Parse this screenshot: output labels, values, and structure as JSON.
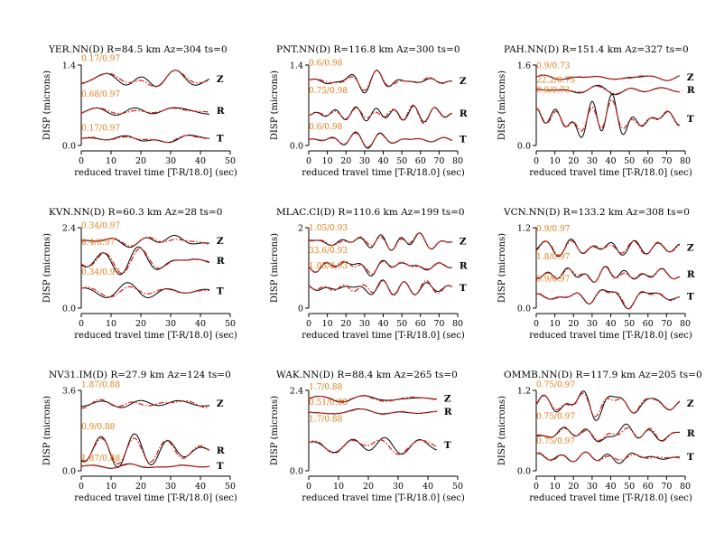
{
  "figure": {
    "xlabel": "reduced travel time [T-R/18.0] (sec)",
    "ylabel": "DISP (microns)",
    "colors": {
      "observed": "#000000",
      "synthetic": "#e0271c",
      "annotation": "#e07b14"
    }
  },
  "chart_data": [
    {
      "type": "line",
      "title": "YER.NN(D) R=84.5 km Az=304 ts=0",
      "xlim": [
        0,
        50
      ],
      "xticks": [
        0,
        10,
        20,
        30,
        40,
        50
      ],
      "ylim": [
        0,
        1.4
      ],
      "yticks": [
        "0.0",
        "1.4"
      ],
      "tmax": 43,
      "traces": [
        {
          "component": "Z",
          "annotation": "0.17/0.97",
          "offset": 1.15,
          "amp": 0.26,
          "obs_seed": 11,
          "syn_seed": 12
        },
        {
          "component": "R",
          "annotation": "0.68/0.97",
          "offset": 0.6,
          "amp": 0.2,
          "obs_seed": 13,
          "syn_seed": 14
        },
        {
          "component": "T",
          "annotation": "0.17/0.97",
          "offset": 0.12,
          "amp": 0.1,
          "obs_seed": 15,
          "syn_seed": 16
        }
      ]
    },
    {
      "type": "line",
      "title": "PNT.NN(D) R=116.8 km Az=300 ts=0",
      "xlim": [
        0,
        80
      ],
      "xticks": [
        0,
        10,
        20,
        30,
        40,
        50,
        60,
        70,
        80
      ],
      "ylim": [
        0,
        1.4
      ],
      "yticks": [
        "0.0",
        "1.4"
      ],
      "tmax": 77,
      "traces": [
        {
          "component": "Z",
          "annotation": "0.6/0.98",
          "offset": 1.12,
          "amp": 0.22,
          "obs_seed": 21,
          "syn_seed": 22
        },
        {
          "component": "R",
          "annotation": "0.75/0.98",
          "offset": 0.55,
          "amp": 0.3,
          "obs_seed": 23,
          "syn_seed": 24
        },
        {
          "component": "T",
          "annotation": "0.6/0.98",
          "offset": 0.1,
          "amp": 0.14,
          "obs_seed": 25,
          "syn_seed": 26
        }
      ]
    },
    {
      "type": "line",
      "title": "PAH.NN(D) R=151.4 km Az=327 ts=0",
      "xlim": [
        0,
        80
      ],
      "xticks": [
        0,
        10,
        20,
        30,
        40,
        50,
        60,
        70,
        80
      ],
      "ylim": [
        0,
        1.6
      ],
      "yticks": [
        "0.0",
        "1.6"
      ],
      "tmax": 77,
      "traces": [
        {
          "component": "Z",
          "annotation": "0.9/0.73",
          "offset": 1.35,
          "amp": 0.14,
          "obs_seed": 31,
          "syn_seed": 32
        },
        {
          "component": "R",
          "annotation": "22.2/0.73",
          "offset": 1.1,
          "amp": 0.1,
          "obs_seed": 33,
          "syn_seed": 34
        },
        {
          "component": "T",
          "annotation": "0.9/0.73",
          "offset": 0.52,
          "amp": 0.45,
          "obs_seed": 35,
          "syn_seed": 36
        }
      ]
    },
    {
      "type": "line",
      "title": "KVN.NN(D) R=60.3 km Az=28 ts=0",
      "xlim": [
        0,
        50
      ],
      "xticks": [
        0,
        10,
        20,
        30,
        40,
        50
      ],
      "ylim": [
        0,
        2.4
      ],
      "yticks": [
        "0.0",
        "2.4"
      ],
      "tmax": 43,
      "traces": [
        {
          "component": "Z",
          "annotation": "0.34/0.97",
          "offset": 2.0,
          "amp": 0.3,
          "obs_seed": 41,
          "syn_seed": 42
        },
        {
          "component": "R",
          "annotation": "0.4/0.97",
          "offset": 1.4,
          "amp": 0.4,
          "obs_seed": 43,
          "syn_seed": 44
        },
        {
          "component": "T",
          "annotation": "0.34/0.97",
          "offset": 0.5,
          "amp": 0.4,
          "obs_seed": 45,
          "syn_seed": 46
        }
      ]
    },
    {
      "type": "line",
      "title": "MLAC.CI(D) R=110.6 km Az=199 ts=0",
      "xlim": [
        0,
        80
      ],
      "xticks": [
        0,
        10,
        20,
        30,
        40,
        50,
        60,
        70,
        80
      ],
      "ylim": [
        0,
        2
      ],
      "yticks": [
        "0",
        "2"
      ],
      "tmax": 77,
      "traces": [
        {
          "component": "Z",
          "annotation": "1.05/0.93",
          "offset": 1.65,
          "amp": 0.22,
          "obs_seed": 51,
          "syn_seed": 52
        },
        {
          "component": "R",
          "annotation": "33.6/0.93",
          "offset": 1.05,
          "amp": 0.25,
          "obs_seed": 53,
          "syn_seed": 54
        },
        {
          "component": "T",
          "annotation": "1.05/0.93",
          "offset": 0.5,
          "amp": 0.4,
          "obs_seed": 55,
          "syn_seed": 56
        }
      ]
    },
    {
      "type": "line",
      "title": "VCN.NN(D) R=133.2 km Az=308 ts=0",
      "xlim": [
        0,
        80
      ],
      "xticks": [
        0,
        10,
        20,
        30,
        40,
        50,
        60,
        70,
        80
      ],
      "ylim": [
        0,
        1.2
      ],
      "yticks": [
        "0.0",
        "1.2"
      ],
      "tmax": 77,
      "traces": [
        {
          "component": "Z",
          "annotation": "0.9/0.97",
          "offset": 0.9,
          "amp": 0.2,
          "obs_seed": 61,
          "syn_seed": 62
        },
        {
          "component": "R",
          "annotation": "1.8/0.97",
          "offset": 0.5,
          "amp": 0.18,
          "obs_seed": 63,
          "syn_seed": 64
        },
        {
          "component": "T",
          "annotation": "0.9/0.97",
          "offset": 0.17,
          "amp": 0.18,
          "obs_seed": 65,
          "syn_seed": 66
        }
      ]
    },
    {
      "type": "line",
      "title": "NV31.IM(D) R=27.9 km Az=124 ts=0",
      "xlim": [
        0,
        50
      ],
      "xticks": [
        0,
        10,
        20,
        30,
        40,
        50
      ],
      "ylim": [
        0,
        3.6
      ],
      "yticks": [
        "0.0",
        "3.6"
      ],
      "tmax": 43,
      "traces": [
        {
          "component": "Z",
          "annotation": "1.87/0.88",
          "offset": 3.0,
          "amp": 0.6,
          "obs_seed": 71,
          "syn_seed": 72
        },
        {
          "component": "R",
          "annotation": "0.9/0.88",
          "offset": 0.9,
          "amp": 0.8,
          "obs_seed": 73,
          "syn_seed": 74
        },
        {
          "component": "T",
          "annotation": "1.87/0.88",
          "offset": 0.2,
          "amp": 0.15,
          "obs_seed": 75,
          "syn_seed": 76
        }
      ]
    },
    {
      "type": "line",
      "title": "WAK.NN(D) R=88.4 km Az=265 ts=0",
      "xlim": [
        0,
        50
      ],
      "xticks": [
        0,
        10,
        20,
        30,
        40,
        50
      ],
      "ylim": [
        0,
        2.4
      ],
      "yticks": [
        "0.0",
        "2.4"
      ],
      "tmax": 43,
      "traces": [
        {
          "component": "Z",
          "annotation": "1.7/0.88",
          "offset": 2.15,
          "amp": 0.2,
          "obs_seed": 81,
          "syn_seed": 82
        },
        {
          "component": "R",
          "annotation": "0.51/0.88",
          "offset": 1.75,
          "amp": 0.15,
          "obs_seed": 83,
          "syn_seed": 84
        },
        {
          "component": "T",
          "annotation": "1.7/0.88",
          "offset": 0.75,
          "amp": 0.6,
          "obs_seed": 85,
          "syn_seed": 86
        }
      ]
    },
    {
      "type": "line",
      "title": "OMMB.NN(D) R=117.9 km Az=205 ts=0",
      "xlim": [
        0,
        80
      ],
      "xticks": [
        0,
        10,
        20,
        30,
        40,
        50,
        60,
        70,
        80
      ],
      "ylim": [
        0,
        1.2
      ],
      "yticks": [
        "0.0",
        "1.2"
      ],
      "tmax": 77,
      "traces": [
        {
          "component": "Z",
          "annotation": "0.75/0.97",
          "offset": 1.0,
          "amp": 0.2,
          "obs_seed": 91,
          "syn_seed": 92
        },
        {
          "component": "R",
          "annotation": "0.75/0.97",
          "offset": 0.55,
          "amp": 0.18,
          "obs_seed": 93,
          "syn_seed": 94
        },
        {
          "component": "T",
          "annotation": "0.75/0.97",
          "offset": 0.2,
          "amp": 0.16,
          "obs_seed": 95,
          "syn_seed": 96
        }
      ]
    }
  ]
}
